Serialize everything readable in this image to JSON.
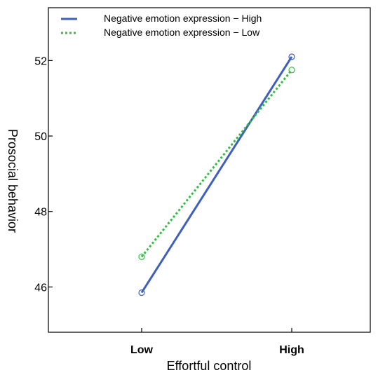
{
  "chart_data": {
    "type": "line",
    "categories": [
      "Low",
      "High"
    ],
    "xlabel": "Effortful control",
    "ylabel": "Prosocial behavior",
    "ylim": [
      44.8,
      53.4
    ],
    "yticks": [
      46,
      48,
      50,
      52
    ],
    "ytick_labels": [
      "46",
      "48",
      "50",
      "52"
    ],
    "grid": false,
    "legend_position": "top-left",
    "series": [
      {
        "name": "Negative emotion expression − High",
        "values": [
          45.85,
          52.1
        ],
        "color": "#3f5fbf",
        "line_style": "solid",
        "marker": "open-circle"
      },
      {
        "name": "Negative emotion expression − Low",
        "values": [
          46.8,
          51.75
        ],
        "color": "#2fbf3f",
        "line_style": "dotted",
        "marker": "open-circle"
      }
    ]
  }
}
